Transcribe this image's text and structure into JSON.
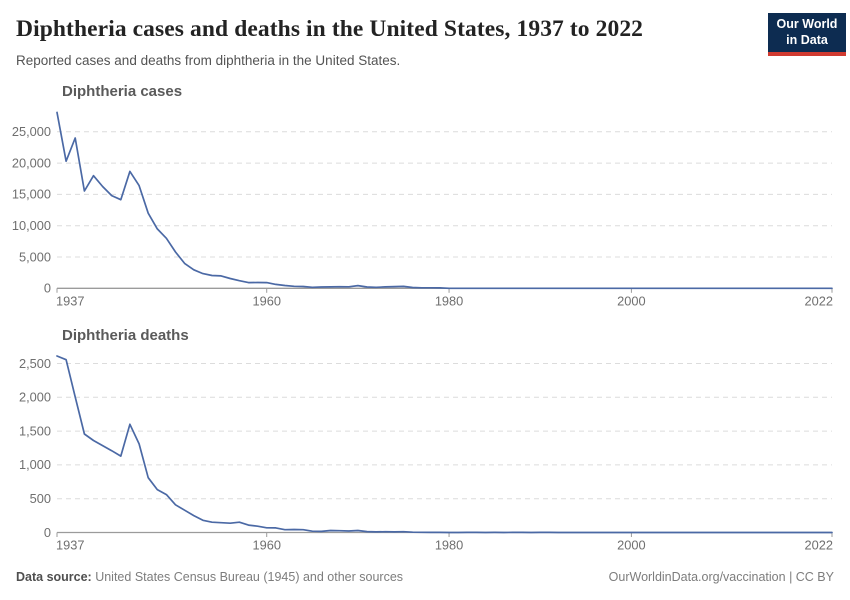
{
  "header": {
    "title": "Diphtheria cases and deaths in the United States, 1937 to 2022",
    "subtitle": "Reported cases and deaths from diphtheria in the United States.",
    "logo": {
      "line1": "Our World",
      "line2": "in Data",
      "bg": "#0d2c51",
      "accent": "#d03a30"
    }
  },
  "footer": {
    "source_label": "Data source:",
    "source_text": " United States Census Bureau (1945) and other sources",
    "right_text": "OurWorldinData.org/vaccination | CC BY"
  },
  "colors": {
    "line": "#4b69a5",
    "grid": "#dcdcdc",
    "axis": "#9b9b9b",
    "tick_label": "#6f6f6f",
    "chart_title": "#5a5a5a"
  },
  "chart_data": [
    {
      "type": "line",
      "title": "Diphtheria cases",
      "xlabel": "",
      "ylabel": "",
      "legend": "none",
      "grid": "horizontal-dashed",
      "ylim": [
        0,
        28480
      ],
      "yticks": [
        0,
        5000,
        10000,
        15000,
        20000,
        25000
      ],
      "xticks": [
        1937,
        1960,
        1980,
        2000,
        2022
      ],
      "x": [
        1937,
        1938,
        1939,
        1940,
        1941,
        1942,
        1943,
        1944,
        1945,
        1946,
        1947,
        1948,
        1949,
        1950,
        1951,
        1952,
        1953,
        1954,
        1955,
        1956,
        1957,
        1958,
        1959,
        1960,
        1961,
        1962,
        1963,
        1964,
        1965,
        1966,
        1967,
        1968,
        1969,
        1970,
        1971,
        1972,
        1973,
        1974,
        1975,
        1976,
        1977,
        1978,
        1979,
        1980,
        1981,
        1982,
        1983,
        1984,
        1985,
        1986,
        1987,
        1988,
        1989,
        1990,
        1991,
        1992,
        1993,
        1994,
        1995,
        1996,
        1997,
        1998,
        1999,
        2000,
        2001,
        2002,
        2003,
        2004,
        2005,
        2006,
        2007,
        2008,
        2009,
        2010,
        2011,
        2012,
        2013,
        2014,
        2015,
        2016,
        2017,
        2018,
        2019,
        2020,
        2021,
        2022
      ],
      "values": [
        28100,
        20300,
        24000,
        15536,
        17986,
        16260,
        14811,
        14150,
        18675,
        16400,
        12000,
        9493,
        7989,
        5796,
        3983,
        2960,
        2355,
        2041,
        1984,
        1568,
        1211,
        918,
        934,
        918,
        617,
        444,
        314,
        293,
        164,
        209,
        219,
        260,
        241,
        435,
        215,
        152,
        228,
        272,
        307,
        128,
        84,
        76,
        59,
        3,
        5,
        2,
        5,
        1,
        3,
        0,
        3,
        2,
        3,
        4,
        5,
        4,
        0,
        2,
        0,
        2,
        4,
        1,
        1,
        1,
        2,
        1,
        1,
        0,
        0,
        0,
        0,
        0,
        0,
        0,
        0,
        1,
        0,
        1,
        0,
        0,
        0,
        1,
        2,
        0,
        0,
        1
      ]
    },
    {
      "type": "line",
      "title": "Diphtheria deaths",
      "xlabel": "",
      "ylabel": "",
      "legend": "none",
      "grid": "horizontal-dashed",
      "ylim": [
        0,
        2640
      ],
      "yticks": [
        0,
        500,
        1000,
        1500,
        2000,
        2500
      ],
      "xticks": [
        1937,
        1960,
        1980,
        2000,
        2022
      ],
      "x": [
        1937,
        1938,
        1939,
        1940,
        1941,
        1942,
        1943,
        1944,
        1945,
        1946,
        1947,
        1948,
        1949,
        1950,
        1951,
        1952,
        1953,
        1954,
        1955,
        1956,
        1957,
        1958,
        1959,
        1960,
        1961,
        1962,
        1963,
        1964,
        1965,
        1966,
        1967,
        1968,
        1969,
        1970,
        1971,
        1972,
        1973,
        1974,
        1975,
        1976,
        1977,
        1978,
        1979,
        1980,
        1981,
        1982,
        1983,
        1984,
        1985,
        1986,
        1987,
        1988,
        1989,
        1990,
        1991,
        1992,
        1993,
        1994,
        1995,
        1996,
        1997,
        1998,
        1999,
        2000,
        2001,
        2002,
        2003,
        2004,
        2005,
        2006,
        2007,
        2008,
        2009,
        2010,
        2011,
        2012,
        2013,
        2014,
        2015,
        2016,
        2017,
        2018,
        2019,
        2020,
        2021,
        2022
      ],
      "values": [
        2610,
        2555,
        2005,
        1457,
        1360,
        1285,
        1210,
        1130,
        1600,
        1310,
        810,
        634,
        560,
        410,
        330,
        250,
        180,
        152,
        145,
        138,
        152,
        110,
        93,
        69,
        68,
        41,
        45,
        42,
        19,
        17,
        30,
        27,
        22,
        30,
        14,
        9,
        12,
        9,
        12,
        5,
        3,
        2,
        1,
        0,
        0,
        1,
        1,
        0,
        1,
        0,
        1,
        1,
        0,
        1,
        1,
        0,
        0,
        0,
        0,
        0,
        0,
        0,
        0,
        0,
        0,
        0,
        0,
        0,
        0,
        0,
        0,
        0,
        0,
        0,
        0,
        0,
        0,
        0,
        0,
        0,
        0,
        0,
        0,
        0,
        0,
        0
      ]
    }
  ]
}
